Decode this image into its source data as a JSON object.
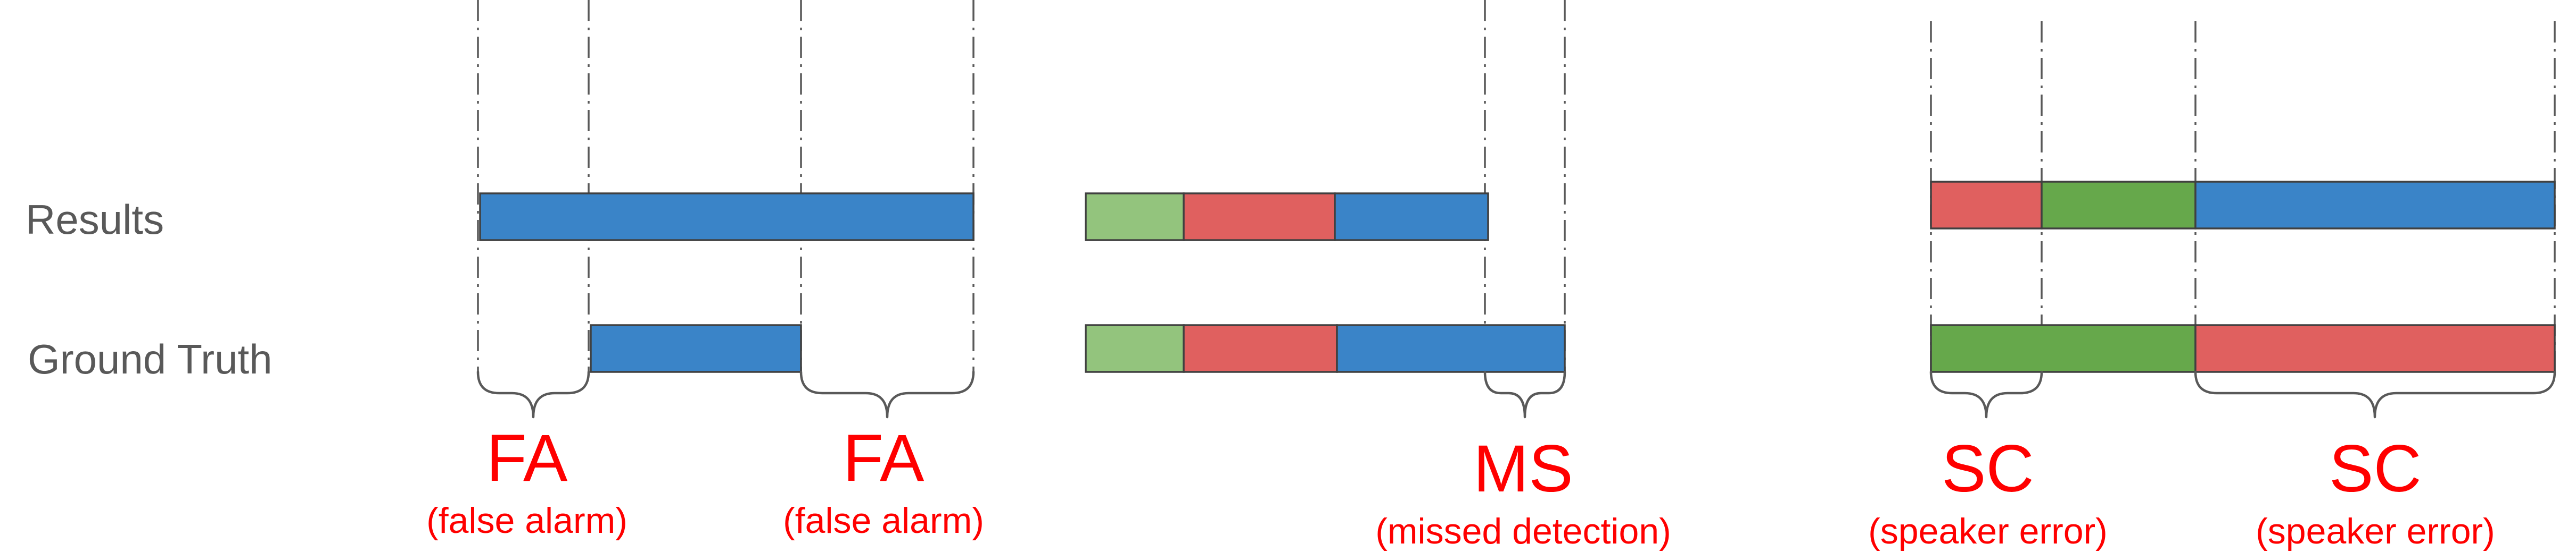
{
  "labels": {
    "results": "Results",
    "ground_truth": "Ground Truth"
  },
  "errors": [
    {
      "code": "FA",
      "description": "(false alarm)"
    },
    {
      "code": "FA",
      "description": "(false alarm)"
    },
    {
      "code": "MS",
      "description": "(missed detection)"
    },
    {
      "code": "SC",
      "description": "(speaker error)"
    },
    {
      "code": "SC",
      "description": "(speaker error)"
    }
  ],
  "colors": {
    "speaker_blue": "#3a84c8",
    "speaker_red": "#e0605f",
    "speaker_light_green": "#93c47d",
    "speaker_dark_green": "#66a84b",
    "annotation_red": "#ff0000",
    "label_gray": "#595959"
  }
}
